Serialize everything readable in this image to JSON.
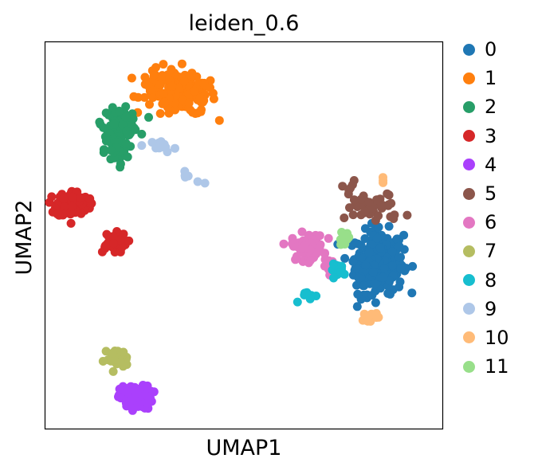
{
  "chart_data": {
    "type": "scatter",
    "title": "leiden_0.6",
    "xlabel": "UMAP1",
    "ylabel": "UMAP2",
    "xlim": [
      0,
      100
    ],
    "ylim": [
      0,
      100
    ],
    "grid": false,
    "legend_position": "right",
    "series": [
      {
        "name": "0",
        "color": "#1f77b4",
        "clusters": [
          {
            "cx": 84,
            "cy": 43,
            "rx": 6,
            "ry": 8,
            "n": 260
          },
          {
            "cx": 80,
            "cy": 40,
            "rx": 3,
            "ry": 5,
            "n": 30
          }
        ]
      },
      {
        "name": "1",
        "color": "#ff7f0e",
        "clusters": [
          {
            "cx": 36,
            "cy": 86,
            "rx": 7,
            "ry": 5,
            "n": 120
          },
          {
            "cx": 29,
            "cy": 88,
            "rx": 5,
            "ry": 5,
            "n": 60
          }
        ]
      },
      {
        "name": "2",
        "color": "#279e68",
        "clusters": [
          {
            "cx": 19,
            "cy": 79,
            "rx": 4.5,
            "ry": 3.5,
            "n": 90
          },
          {
            "cx": 18,
            "cy": 72,
            "rx": 3,
            "ry": 4,
            "n": 50
          }
        ]
      },
      {
        "name": "3",
        "color": "#d62728",
        "clusters": [
          {
            "cx": 7,
            "cy": 58,
            "rx": 4,
            "ry": 3.5,
            "n": 110
          },
          {
            "cx": 17,
            "cy": 48,
            "rx": 3.5,
            "ry": 2.5,
            "n": 50
          }
        ]
      },
      {
        "name": "4",
        "color": "#aa40fc",
        "clusters": [
          {
            "cx": 23,
            "cy": 8,
            "rx": 4,
            "ry": 3,
            "n": 110
          }
        ]
      },
      {
        "name": "5",
        "color": "#8c564b",
        "clusters": [
          {
            "cx": 83,
            "cy": 57,
            "rx": 7,
            "ry": 4,
            "n": 40
          },
          {
            "cx": 76,
            "cy": 61,
            "rx": 2,
            "ry": 3,
            "n": 8
          }
        ]
      },
      {
        "name": "6",
        "color": "#e377c2",
        "clusters": [
          {
            "cx": 66,
            "cy": 47,
            "rx": 4,
            "ry": 3.5,
            "n": 70
          },
          {
            "cx": 72,
            "cy": 42,
            "rx": 2,
            "ry": 1.5,
            "n": 15
          }
        ]
      },
      {
        "name": "7",
        "color": "#b5bd61",
        "clusters": [
          {
            "cx": 18,
            "cy": 18,
            "rx": 3,
            "ry": 2.5,
            "n": 30
          }
        ]
      },
      {
        "name": "8",
        "color": "#17becf",
        "clusters": [
          {
            "cx": 74,
            "cy": 41,
            "rx": 2.2,
            "ry": 1.5,
            "n": 20
          },
          {
            "cx": 67,
            "cy": 34,
            "rx": 2.5,
            "ry": 1.5,
            "n": 8
          }
        ]
      },
      {
        "name": "9",
        "color": "#aec7e8",
        "clusters": [
          {
            "cx": 30,
            "cy": 73,
            "rx": 3,
            "ry": 1.5,
            "n": 14
          },
          {
            "cx": 35,
            "cy": 65,
            "rx": 4,
            "ry": 3,
            "n": 6
          }
        ]
      },
      {
        "name": "10",
        "color": "#ffbb78",
        "clusters": [
          {
            "cx": 82,
            "cy": 29,
            "rx": 2,
            "ry": 1.2,
            "n": 12
          },
          {
            "cx": 85,
            "cy": 64,
            "rx": 0.5,
            "ry": 0.8,
            "n": 3
          }
        ]
      },
      {
        "name": "11",
        "color": "#98df8a",
        "clusters": [
          {
            "cx": 75,
            "cy": 49,
            "rx": 1.6,
            "ry": 1.8,
            "n": 12
          }
        ]
      }
    ]
  }
}
